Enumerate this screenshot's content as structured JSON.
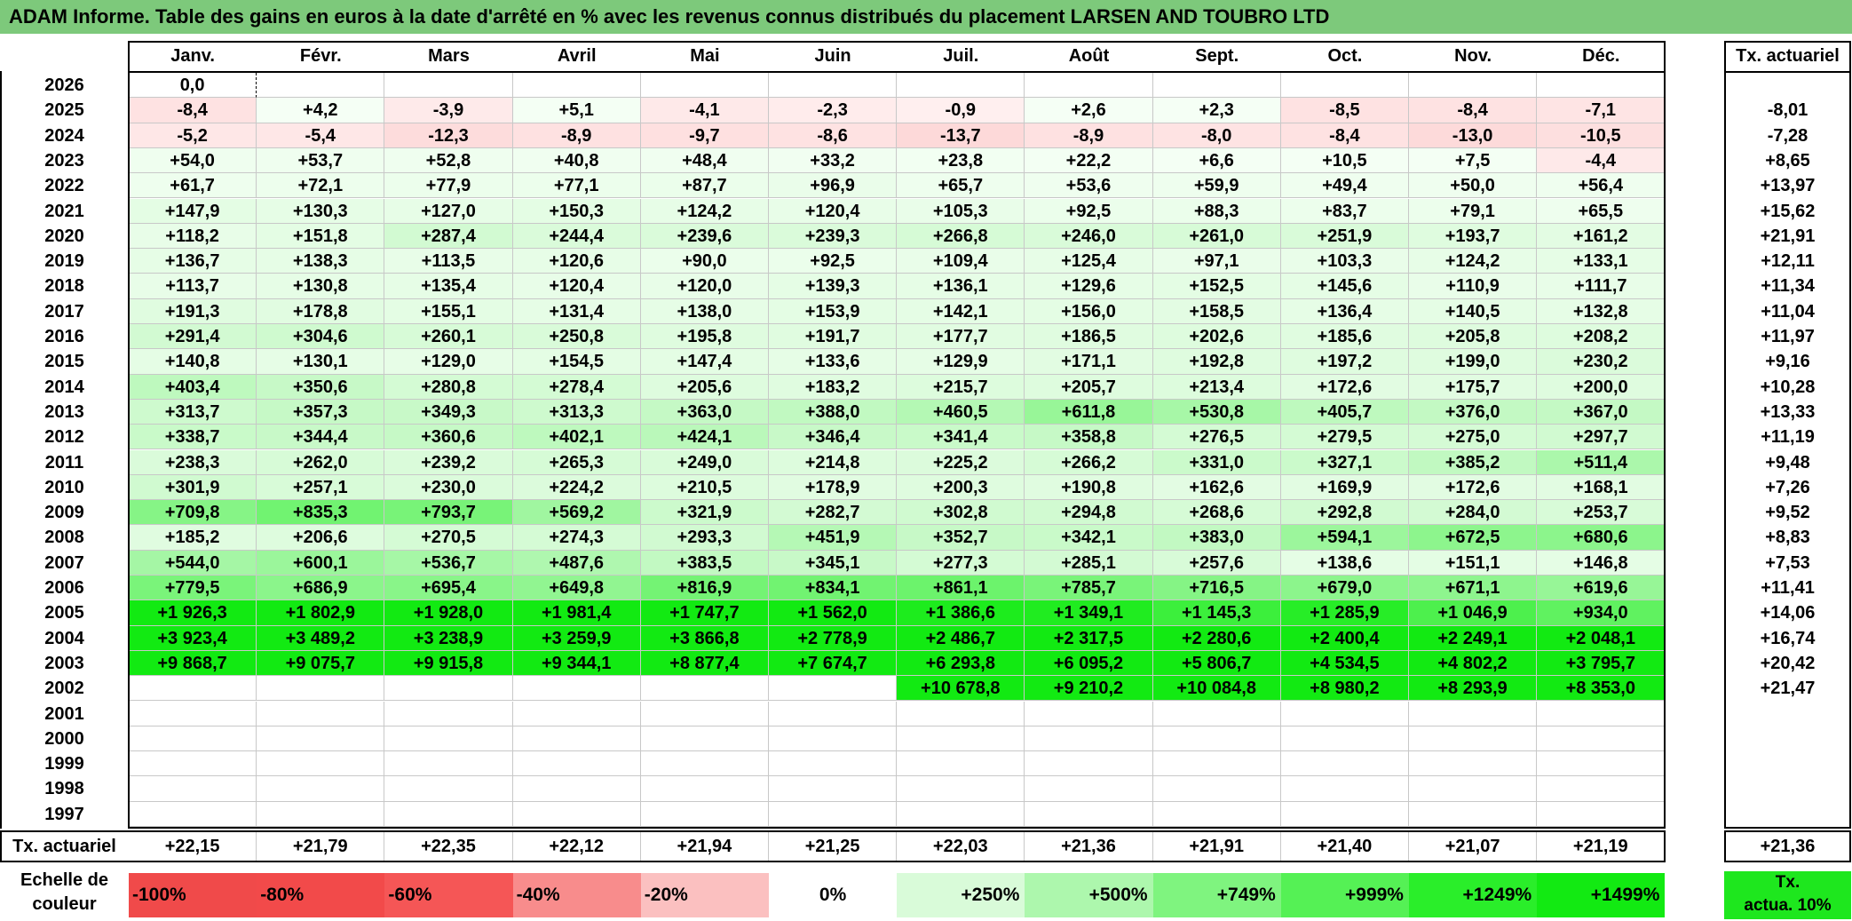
{
  "title": "ADAM Informe. Table des gains en euros à la date d'arrêté en % avec les revenus connus distribués du placement LARSEN AND TOUBRO LTD",
  "months": [
    "Janv.",
    "Févr.",
    "Mars",
    "Avril",
    "Mai",
    "Juin",
    "Juil.",
    "Août",
    "Sept.",
    "Oct.",
    "Nov.",
    "Déc."
  ],
  "tx_header": "Tx. actuariel",
  "rows": [
    {
      "year": "2026",
      "values": [
        "0,0",
        "",
        "",
        "",
        "",
        "",
        "",
        "",
        "",
        "",
        "",
        ""
      ],
      "tx": ""
    },
    {
      "year": "2025",
      "values": [
        "-8,4",
        "+4,2",
        "-3,9",
        "+5,1",
        "-4,1",
        "-2,3",
        "-0,9",
        "+2,6",
        "+2,3",
        "-8,5",
        "-8,4",
        "-7,1"
      ],
      "tx": "-8,01"
    },
    {
      "year": "2024",
      "values": [
        "-5,2",
        "-5,4",
        "-12,3",
        "-8,9",
        "-9,7",
        "-8,6",
        "-13,7",
        "-8,9",
        "-8,0",
        "-8,4",
        "-13,0",
        "-10,5"
      ],
      "tx": "-7,28"
    },
    {
      "year": "2023",
      "values": [
        "+54,0",
        "+53,7",
        "+52,8",
        "+40,8",
        "+48,4",
        "+33,2",
        "+23,8",
        "+22,2",
        "+6,6",
        "+10,5",
        "+7,5",
        "-4,4"
      ],
      "tx": "+8,65"
    },
    {
      "year": "2022",
      "values": [
        "+61,7",
        "+72,1",
        "+77,9",
        "+77,1",
        "+87,7",
        "+96,9",
        "+65,7",
        "+53,6",
        "+59,9",
        "+49,4",
        "+50,0",
        "+56,4"
      ],
      "tx": "+13,97"
    },
    {
      "year": "2021",
      "values": [
        "+147,9",
        "+130,3",
        "+127,0",
        "+150,3",
        "+124,2",
        "+120,4",
        "+105,3",
        "+92,5",
        "+88,3",
        "+83,7",
        "+79,1",
        "+65,5"
      ],
      "tx": "+15,62"
    },
    {
      "year": "2020",
      "values": [
        "+118,2",
        "+151,8",
        "+287,4",
        "+244,4",
        "+239,6",
        "+239,3",
        "+266,8",
        "+246,0",
        "+261,0",
        "+251,9",
        "+193,7",
        "+161,2"
      ],
      "tx": "+21,91"
    },
    {
      "year": "2019",
      "values": [
        "+136,7",
        "+138,3",
        "+113,5",
        "+120,6",
        "+90,0",
        "+92,5",
        "+109,4",
        "+125,4",
        "+97,1",
        "+103,3",
        "+124,2",
        "+133,1"
      ],
      "tx": "+12,11"
    },
    {
      "year": "2018",
      "values": [
        "+113,7",
        "+130,8",
        "+135,4",
        "+120,4",
        "+120,0",
        "+139,3",
        "+136,1",
        "+129,6",
        "+152,5",
        "+145,6",
        "+110,9",
        "+111,7"
      ],
      "tx": "+11,34"
    },
    {
      "year": "2017",
      "values": [
        "+191,3",
        "+178,8",
        "+155,1",
        "+131,4",
        "+138,0",
        "+153,9",
        "+142,1",
        "+156,0",
        "+158,5",
        "+136,4",
        "+140,5",
        "+132,8"
      ],
      "tx": "+11,04"
    },
    {
      "year": "2016",
      "values": [
        "+291,4",
        "+304,6",
        "+260,1",
        "+250,8",
        "+195,8",
        "+191,7",
        "+177,7",
        "+186,5",
        "+202,6",
        "+185,6",
        "+205,8",
        "+208,2"
      ],
      "tx": "+11,97"
    },
    {
      "year": "2015",
      "values": [
        "+140,8",
        "+130,1",
        "+129,0",
        "+154,5",
        "+147,4",
        "+133,6",
        "+129,9",
        "+171,1",
        "+192,8",
        "+197,2",
        "+199,0",
        "+230,2"
      ],
      "tx": "+9,16"
    },
    {
      "year": "2014",
      "values": [
        "+403,4",
        "+350,6",
        "+280,8",
        "+278,4",
        "+205,6",
        "+183,2",
        "+215,7",
        "+205,7",
        "+213,4",
        "+172,6",
        "+175,7",
        "+200,0"
      ],
      "tx": "+10,28"
    },
    {
      "year": "2013",
      "values": [
        "+313,7",
        "+357,3",
        "+349,3",
        "+313,3",
        "+363,0",
        "+388,0",
        "+460,5",
        "+611,8",
        "+530,8",
        "+405,7",
        "+376,0",
        "+367,0"
      ],
      "tx": "+13,33"
    },
    {
      "year": "2012",
      "values": [
        "+338,7",
        "+344,4",
        "+360,6",
        "+402,1",
        "+424,1",
        "+346,4",
        "+341,4",
        "+358,8",
        "+276,5",
        "+279,5",
        "+275,0",
        "+297,7"
      ],
      "tx": "+11,19"
    },
    {
      "year": "2011",
      "values": [
        "+238,3",
        "+262,0",
        "+239,2",
        "+265,3",
        "+249,0",
        "+214,8",
        "+225,2",
        "+266,2",
        "+331,0",
        "+327,1",
        "+385,2",
        "+511,4"
      ],
      "tx": "+9,48"
    },
    {
      "year": "2010",
      "values": [
        "+301,9",
        "+257,1",
        "+230,0",
        "+224,2",
        "+210,5",
        "+178,9",
        "+200,3",
        "+190,8",
        "+162,6",
        "+169,9",
        "+172,6",
        "+168,1"
      ],
      "tx": "+7,26"
    },
    {
      "year": "2009",
      "values": [
        "+709,8",
        "+835,3",
        "+793,7",
        "+569,2",
        "+321,9",
        "+282,7",
        "+302,8",
        "+294,8",
        "+268,6",
        "+292,8",
        "+284,0",
        "+253,7"
      ],
      "tx": "+9,52"
    },
    {
      "year": "2008",
      "values": [
        "+185,2",
        "+206,6",
        "+270,5",
        "+274,3",
        "+293,3",
        "+451,9",
        "+352,7",
        "+342,1",
        "+383,0",
        "+594,1",
        "+672,5",
        "+680,6"
      ],
      "tx": "+8,83"
    },
    {
      "year": "2007",
      "values": [
        "+544,0",
        "+600,1",
        "+536,7",
        "+487,6",
        "+383,5",
        "+345,1",
        "+277,3",
        "+285,1",
        "+257,6",
        "+138,6",
        "+151,1",
        "+146,8"
      ],
      "tx": "+7,53"
    },
    {
      "year": "2006",
      "values": [
        "+779,5",
        "+686,9",
        "+695,4",
        "+649,8",
        "+816,9",
        "+834,1",
        "+861,1",
        "+785,7",
        "+716,5",
        "+679,0",
        "+671,1",
        "+619,6"
      ],
      "tx": "+11,41"
    },
    {
      "year": "2005",
      "values": [
        "+1 926,3",
        "+1 802,9",
        "+1 928,0",
        "+1 981,4",
        "+1 747,7",
        "+1 562,0",
        "+1 386,6",
        "+1 349,1",
        "+1 145,3",
        "+1 285,9",
        "+1 046,9",
        "+934,0"
      ],
      "tx": "+14,06"
    },
    {
      "year": "2004",
      "values": [
        "+3 923,4",
        "+3 489,2",
        "+3 238,9",
        "+3 259,9",
        "+3 866,8",
        "+2 778,9",
        "+2 486,7",
        "+2 317,5",
        "+2 280,6",
        "+2 400,4",
        "+2 249,1",
        "+2 048,1"
      ],
      "tx": "+16,74"
    },
    {
      "year": "2003",
      "values": [
        "+9 868,7",
        "+9 075,7",
        "+9 915,8",
        "+9 344,1",
        "+8 877,4",
        "+7 674,7",
        "+6 293,8",
        "+6 095,2",
        "+5 806,7",
        "+4 534,5",
        "+4 802,2",
        "+3 795,7"
      ],
      "tx": "+20,42"
    },
    {
      "year": "2002",
      "values": [
        "",
        "",
        "",
        "",
        "",
        "",
        "+10 678,8",
        "+9 210,2",
        "+10 084,8",
        "+8 980,2",
        "+8 293,9",
        "+8 353,0"
      ],
      "tx": "+21,47"
    },
    {
      "year": "2001",
      "values": [
        "",
        "",
        "",
        "",
        "",
        "",
        "",
        "",
        "",
        "",
        "",
        ""
      ],
      "tx": ""
    },
    {
      "year": "2000",
      "values": [
        "",
        "",
        "",
        "",
        "",
        "",
        "",
        "",
        "",
        "",
        "",
        ""
      ],
      "tx": ""
    },
    {
      "year": "1999",
      "values": [
        "",
        "",
        "",
        "",
        "",
        "",
        "",
        "",
        "",
        "",
        "",
        ""
      ],
      "tx": ""
    },
    {
      "year": "1998",
      "values": [
        "",
        "",
        "",
        "",
        "",
        "",
        "",
        "",
        "",
        "",
        "",
        ""
      ],
      "tx": ""
    },
    {
      "year": "1997",
      "values": [
        "",
        "",
        "",
        "",
        "",
        "",
        "",
        "",
        "",
        "",
        "",
        ""
      ],
      "tx": ""
    }
  ],
  "footer": {
    "label": "Tx. actuariel",
    "values": [
      "+22,15",
      "+21,79",
      "+22,35",
      "+22,12",
      "+21,94",
      "+21,25",
      "+22,03",
      "+21,36",
      "+21,91",
      "+21,40",
      "+21,07",
      "+21,19"
    ],
    "total": "+21,36"
  },
  "scale": {
    "label_line1": "Echelle de",
    "label_line2": "couleur",
    "items": [
      {
        "label": "-100%",
        "color": "#f04a4a"
      },
      {
        "label": "-80%",
        "color": "#f24a4a"
      },
      {
        "label": "-60%",
        "color": "#f55656"
      },
      {
        "label": "-40%",
        "color": "#f88c8c"
      },
      {
        "label": "-20%",
        "color": "#fbc0c0"
      },
      {
        "label": "0%",
        "color": "#ffffff"
      },
      {
        "label": "+250%",
        "color": "#d9fbd9"
      },
      {
        "label": "+500%",
        "color": "#adf7ad"
      },
      {
        "label": "+749%",
        "color": "#7ff47f"
      },
      {
        "label": "+999%",
        "color": "#55f155"
      },
      {
        "label": "+1249%",
        "color": "#2aee2a"
      },
      {
        "label": "+1499%",
        "color": "#12ea12"
      }
    ],
    "tx_line1": "Tx.",
    "tx_line2": "actua. 10%"
  }
}
